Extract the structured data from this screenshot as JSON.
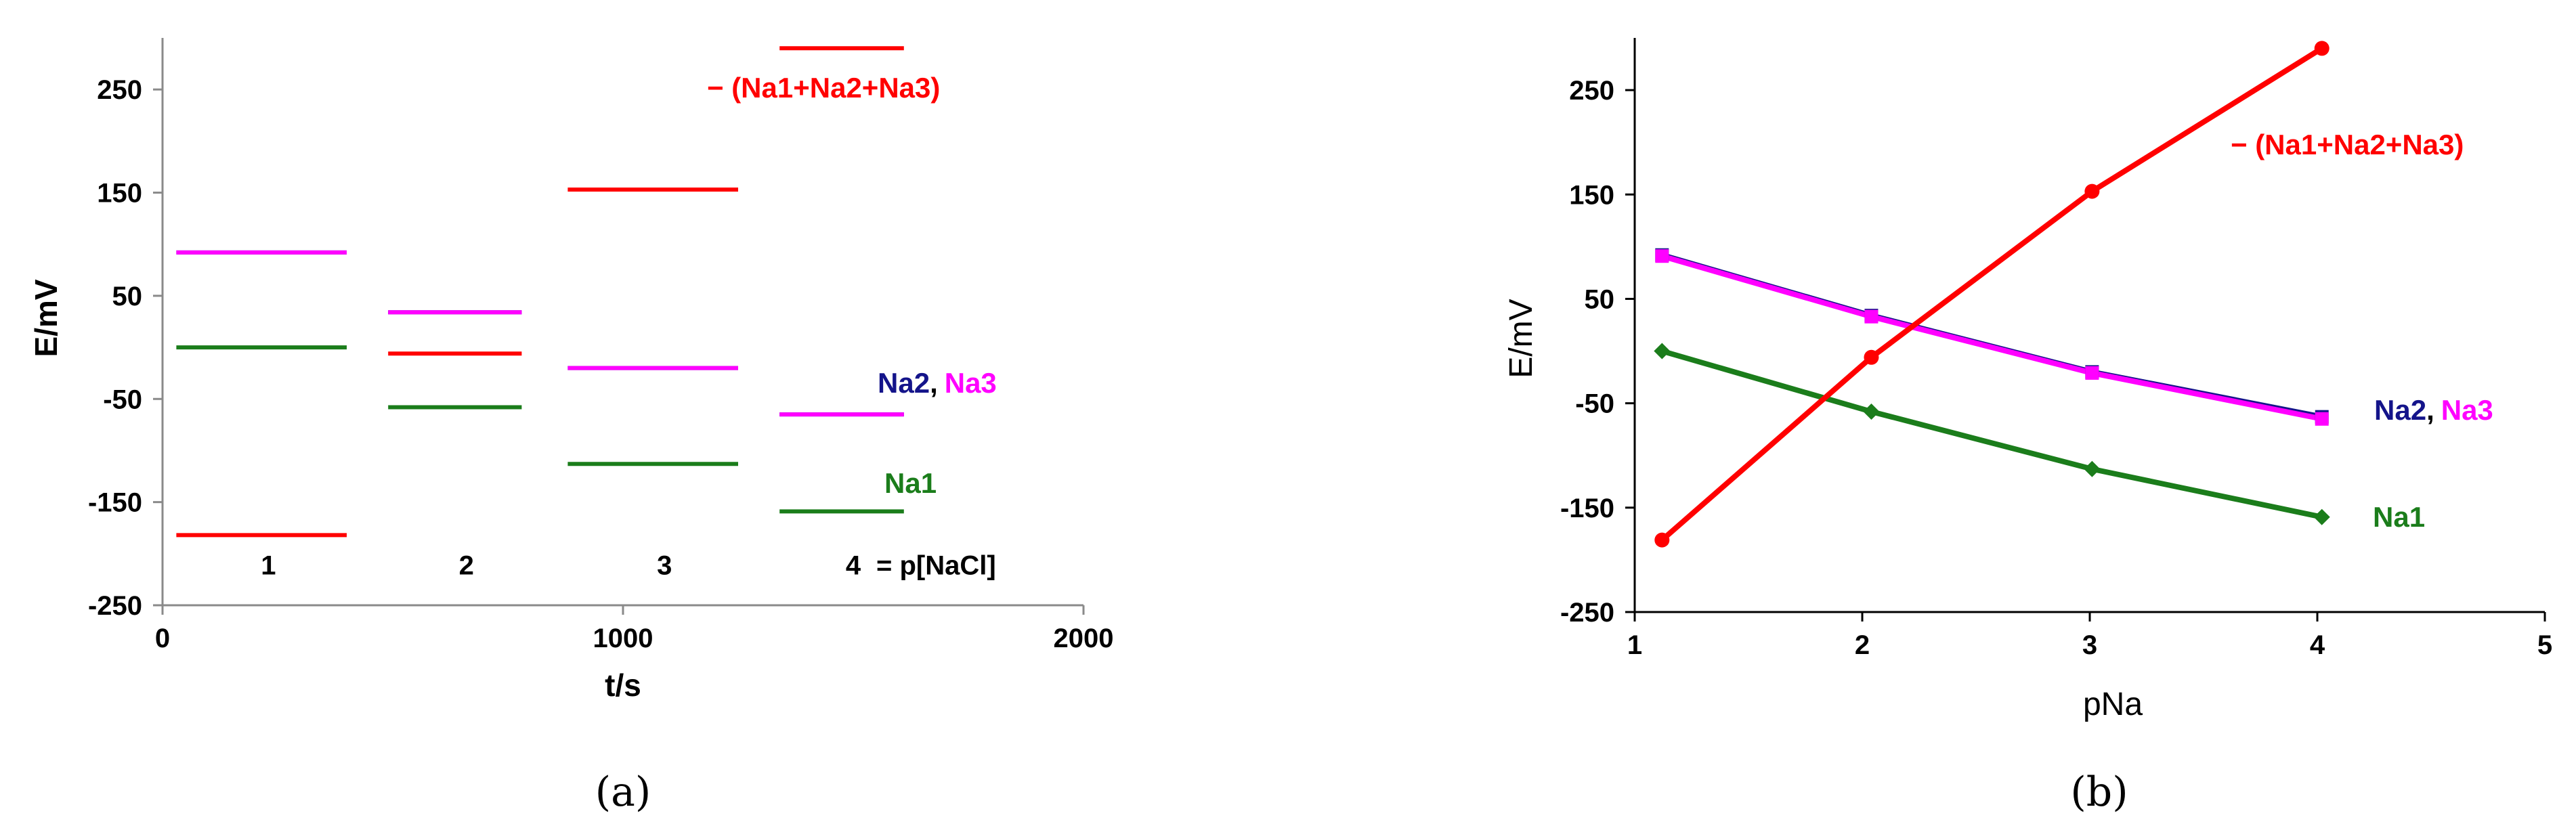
{
  "colors": {
    "Na1": "#1b7d1b",
    "Na2": "#14148a",
    "Na3": "#ff00ff",
    "sum": "#ff0000"
  },
  "chart_data": [
    {
      "panel": "(a)",
      "type": "line",
      "xlabel": "t/s",
      "ylabel": "E/mV",
      "xlim": [
        0,
        2000
      ],
      "ylim": [
        -250,
        300
      ],
      "x_ticks": [
        "0",
        "1000",
        "2000"
      ],
      "y_ticks": [
        "-250",
        "-150",
        "-50",
        "50",
        "150",
        "250"
      ],
      "x_tick_values": [
        0,
        1000,
        2000
      ],
      "y_tick_values": [
        -250,
        -150,
        -50,
        50,
        150,
        250
      ],
      "grid": false,
      "step_labels": [
        "1",
        "2",
        "3",
        "4",
        "= p[NaCl]"
      ],
      "step_label_x": [
        230,
        660,
        1090,
        1500
      ],
      "step_label_y": -220,
      "series": [
        {
          "name": "Na1",
          "color_key": "Na1",
          "segments": [
            {
              "x0": 30,
              "x1": 400,
              "y": 0
            },
            {
              "x0": 490,
              "x1": 780,
              "y": -58
            },
            {
              "x0": 880,
              "x1": 1250,
              "y": -113
            },
            {
              "x0": 1340,
              "x1": 1610,
              "y": -159
            }
          ]
        },
        {
          "name": "Na2",
          "color_key": "Na2",
          "segments": [
            {
              "x0": 30,
              "x1": 400,
              "y": 92
            },
            {
              "x0": 490,
              "x1": 780,
              "y": 34
            },
            {
              "x0": 880,
              "x1": 1250,
              "y": -20
            },
            {
              "x0": 1340,
              "x1": 1610,
              "y": -65
            }
          ]
        },
        {
          "name": "Na3",
          "color_key": "Na3",
          "segments": [
            {
              "x0": 30,
              "x1": 400,
              "y": 92
            },
            {
              "x0": 490,
              "x1": 780,
              "y": 34
            },
            {
              "x0": 880,
              "x1": 1250,
              "y": -20
            },
            {
              "x0": 1340,
              "x1": 1610,
              "y": -65
            }
          ]
        },
        {
          "name": "− (Na1+Na2+Na3)",
          "color_key": "sum",
          "segments": [
            {
              "x0": 30,
              "x1": 400,
              "y": -182
            },
            {
              "x0": 490,
              "x1": 780,
              "y": -6
            },
            {
              "x0": 880,
              "x1": 1250,
              "y": 153
            },
            {
              "x0": 1340,
              "x1": 1610,
              "y": 290
            }
          ]
        }
      ],
      "labels": {
        "sum": "− (Na1+Na2+Na3)",
        "na2": "Na2",
        "comma": ",",
        "na3": "Na3",
        "na1": "Na1"
      }
    },
    {
      "panel": "(b)",
      "type": "line",
      "xlabel": "pNa",
      "ylabel": "E/mV",
      "xlim": [
        1,
        5
      ],
      "ylim": [
        -250,
        300
      ],
      "x_ticks": [
        "1",
        "2",
        "3",
        "4",
        "5"
      ],
      "y_ticks": [
        "-250",
        "-150",
        "-50",
        "50",
        "150",
        "250"
      ],
      "x_tick_values": [
        1,
        2,
        3,
        4,
        5
      ],
      "y_tick_values": [
        -250,
        -150,
        -50,
        50,
        150,
        250
      ],
      "grid": false,
      "series": [
        {
          "name": "Na1",
          "color_key": "Na1",
          "marker": "diamond",
          "x": [
            1.12,
            2.04,
            3.01,
            4.02
          ],
          "y": [
            0,
            -58,
            -113,
            -159
          ]
        },
        {
          "name": "Na2",
          "color_key": "Na2",
          "marker": "square",
          "x": [
            1.12,
            2.04,
            3.01,
            4.02
          ],
          "y": [
            92,
            34,
            -20,
            -63
          ]
        },
        {
          "name": "Na3",
          "color_key": "Na3",
          "marker": "square",
          "x": [
            1.12,
            2.04,
            3.01,
            4.02
          ],
          "y": [
            91,
            33,
            -21,
            -65
          ]
        },
        {
          "name": "− (Na1+Na2+Na3)",
          "color_key": "sum",
          "marker": "circle",
          "x": [
            1.12,
            2.04,
            3.01,
            4.02
          ],
          "y": [
            -181,
            -6,
            153,
            290
          ]
        }
      ],
      "labels": {
        "sum": "− (Na1+Na2+Na3)",
        "na2": "Na2",
        "comma": ",",
        "na3": "Na3",
        "na1": "Na1"
      }
    }
  ]
}
